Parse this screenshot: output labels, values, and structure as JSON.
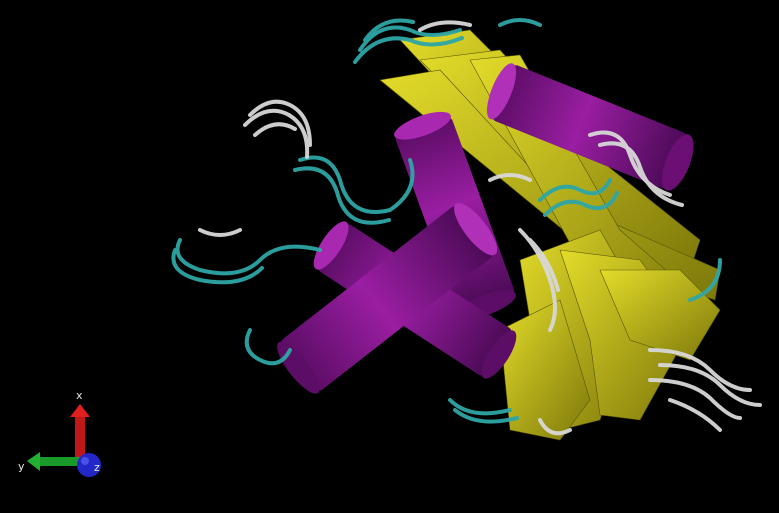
{
  "scene": {
    "background": "#000000",
    "colors": {
      "helix": "#8a1590",
      "helix_dark": "#4a0a55",
      "sheet": "#c9c41c",
      "sheet_dark": "#6e6a08",
      "turn": "#2fa6a6",
      "coil": "#d4d4d4"
    }
  },
  "axes": {
    "x_label": "x",
    "y_label": "y",
    "z_label": "z",
    "x_color": "#c01818",
    "y_color": "#1a9a2a",
    "z_color": "#2228c8"
  }
}
